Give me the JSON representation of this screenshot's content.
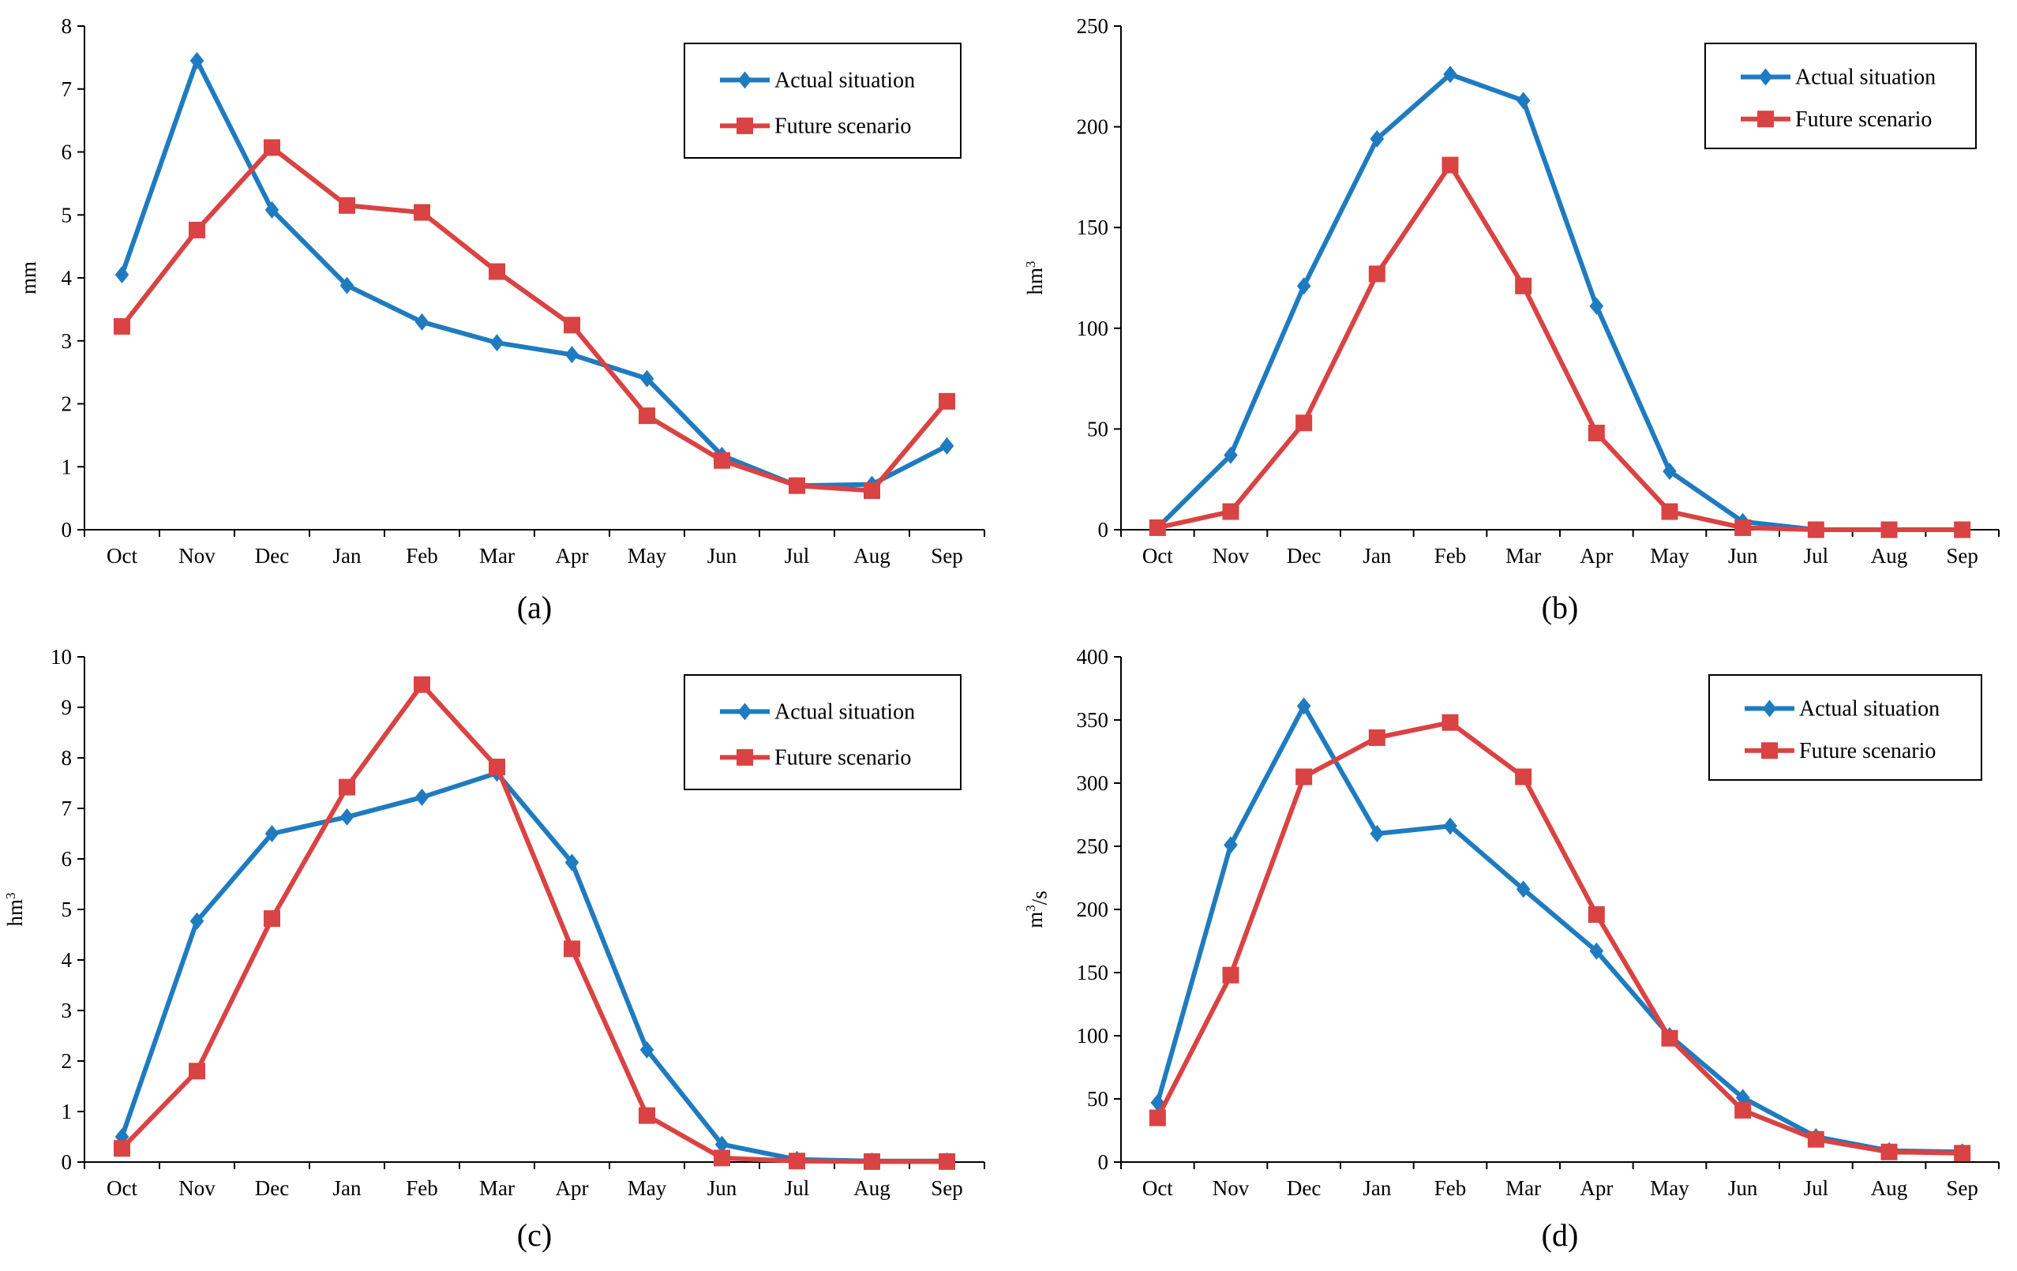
{
  "chart_data": [
    {
      "type": "line",
      "panel_label": "(a)",
      "ylabel": "mm",
      "ylim": [
        0,
        8
      ],
      "yticks": [
        "0",
        "1",
        "2",
        "3",
        "4",
        "5",
        "6",
        "7",
        "8"
      ],
      "categories": [
        "Oct",
        "Nov",
        "Dec",
        "Jan",
        "Feb",
        "Mar",
        "Apr",
        "May",
        "Jun",
        "Jul",
        "Aug",
        "Sep"
      ],
      "legend_position": "top-right",
      "series": [
        {
          "name": "Actual situation",
          "marker": "diamond",
          "color": "#1f7bbf",
          "values": [
            4.05,
            7.45,
            5.08,
            3.88,
            3.3,
            2.97,
            2.78,
            2.4,
            1.18,
            0.7,
            0.72,
            1.33
          ]
        },
        {
          "name": "Future scenario",
          "marker": "square",
          "color": "#d94343",
          "values": [
            3.23,
            4.76,
            6.07,
            5.15,
            5.04,
            4.1,
            3.25,
            1.81,
            1.1,
            0.7,
            0.62,
            2.04
          ]
        }
      ]
    },
    {
      "type": "line",
      "panel_label": "(b)",
      "ylabel": "hm³",
      "ylim": [
        0,
        250
      ],
      "yticks": [
        "0",
        "50",
        "100",
        "150",
        "200",
        "250"
      ],
      "categories": [
        "Oct",
        "Nov",
        "Dec",
        "Jan",
        "Feb",
        "Mar",
        "Apr",
        "May",
        "Jun",
        "Jul",
        "Aug",
        "Sep"
      ],
      "legend_position": "top-right",
      "series": [
        {
          "name": "Actual situation",
          "marker": "diamond",
          "color": "#1f7bbf",
          "values": [
            1,
            37,
            121,
            194,
            226,
            213,
            111,
            29,
            4,
            0,
            0,
            0
          ]
        },
        {
          "name": "Future scenario",
          "marker": "square",
          "color": "#d94343",
          "values": [
            1,
            9,
            53,
            127,
            181,
            121,
            48,
            9,
            1,
            0,
            0,
            0
          ]
        }
      ]
    },
    {
      "type": "line",
      "panel_label": "(c)",
      "ylabel": "hm³",
      "ylim": [
        0,
        10
      ],
      "yticks": [
        "0",
        "1",
        "2",
        "3",
        "4",
        "5",
        "6",
        "7",
        "8",
        "9",
        "10"
      ],
      "categories": [
        "Oct",
        "Nov",
        "Dec",
        "Jan",
        "Feb",
        "Mar",
        "Apr",
        "May",
        "Jun",
        "Jul",
        "Aug",
        "Sep"
      ],
      "legend_position": "top-right",
      "series": [
        {
          "name": "Actual situation",
          "marker": "diamond",
          "color": "#1f7bbf",
          "values": [
            0.5,
            4.77,
            6.5,
            6.83,
            7.22,
            7.7,
            5.93,
            2.22,
            0.35,
            0.05,
            0.02,
            0.02
          ]
        },
        {
          "name": "Future scenario",
          "marker": "square",
          "color": "#d94343",
          "values": [
            0.27,
            1.8,
            4.82,
            7.42,
            9.45,
            7.82,
            4.22,
            0.92,
            0.08,
            0.02,
            0.01,
            0.01
          ]
        }
      ]
    },
    {
      "type": "line",
      "panel_label": "(d)",
      "ylabel": "m³/s",
      "ylim": [
        0,
        400
      ],
      "yticks": [
        "0",
        "50",
        "100",
        "150",
        "200",
        "250",
        "300",
        "350",
        "400"
      ],
      "categories": [
        "Oct",
        "Nov",
        "Dec",
        "Jan",
        "Feb",
        "Mar",
        "Apr",
        "May",
        "Jun",
        "Jul",
        "Aug",
        "Sep"
      ],
      "legend_position": "top-right",
      "series": [
        {
          "name": "Actual situation",
          "marker": "diamond",
          "color": "#1f7bbf",
          "values": [
            47,
            251,
            361,
            260,
            266,
            216,
            167,
            100,
            51,
            20,
            9,
            8
          ]
        },
        {
          "name": "Future scenario",
          "marker": "square",
          "color": "#d94343",
          "values": [
            35,
            148,
            305,
            336,
            348,
            305,
            196,
            98,
            41,
            18,
            8,
            7
          ]
        }
      ]
    }
  ]
}
